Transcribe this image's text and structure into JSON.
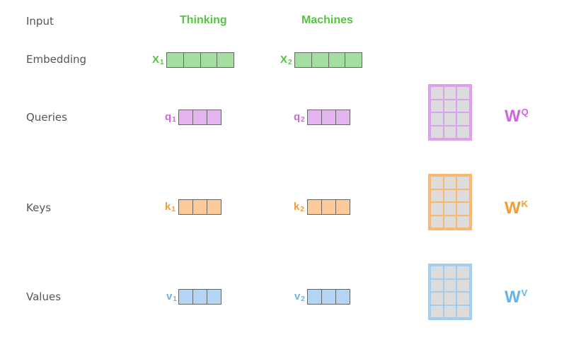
{
  "rows": {
    "input": "Input",
    "embedding": "Embedding",
    "queries": "Queries",
    "keys": "Keys",
    "values": "Values"
  },
  "words": [
    "Thinking",
    "Machines"
  ],
  "embeddings": [
    {
      "base": "X",
      "sub": "1"
    },
    {
      "base": "X",
      "sub": "2"
    }
  ],
  "queries": [
    {
      "base": "q",
      "sub": "1"
    },
    {
      "base": "q",
      "sub": "2"
    }
  ],
  "keys": [
    {
      "base": "k",
      "sub": "1"
    },
    {
      "base": "k",
      "sub": "2"
    }
  ],
  "values": [
    {
      "base": "v",
      "sub": "1"
    },
    {
      "base": "v",
      "sub": "2"
    }
  ],
  "weights": {
    "query": {
      "base": "W",
      "sup": "Q"
    },
    "key": {
      "base": "W",
      "sup": "K"
    },
    "value": {
      "base": "W",
      "sup": "V"
    }
  },
  "colors": {
    "green": "#55c440",
    "embedding_fill": "#a4dea0",
    "purple": "#cc66dd",
    "query_fill": "#e5b3f0",
    "orange": "#f59b33",
    "key_fill": "#fcc99a",
    "blue": "#66b3e8",
    "value_fill": "#b3d5f5"
  }
}
